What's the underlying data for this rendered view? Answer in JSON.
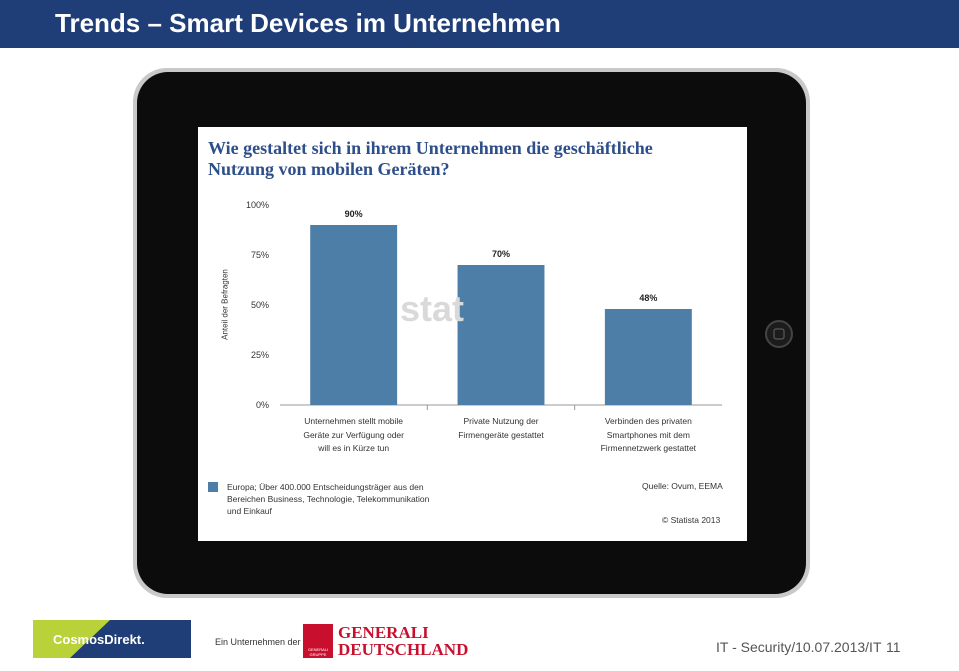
{
  "header": {
    "title": "Trends – Smart Devices im Unternehmen"
  },
  "chart_data": {
    "type": "bar",
    "title": "Wie gestaltet sich in ihrem Unternehmen die geschäftliche Nutzung von mobilen Geräten?",
    "y_label": "Anteil der Befragten",
    "categories": [
      "Unternehmen stellt mobile Geräte zur Verfügung oder will es in Kürze tun",
      "Private Nutzung der Firmengeräte gestattet",
      "Verbinden des privaten Smartphones mit dem Firmennetzwerk gestattet"
    ],
    "values": [
      90,
      70,
      48
    ],
    "value_labels": [
      "90%",
      "70%",
      "48%"
    ],
    "color": "#4d7ea8",
    "ylim": [
      0,
      100
    ],
    "yticks": [
      {
        "value": 0,
        "label": "0%"
      },
      {
        "value": 25,
        "label": "25%"
      },
      {
        "value": 50,
        "label": "50%"
      },
      {
        "value": 75,
        "label": "75%"
      },
      {
        "value": 100,
        "label": "100%"
      }
    ],
    "watermark": "stat",
    "note": "Europa; Über 400.000 Entscheidungsträger aus den Bereichen Business, Technologie, Telekommunikation und Einkauf",
    "source": "Quelle: Ovum, EEMA",
    "copyright": "© Statista 2013"
  },
  "footer": {
    "logo_cosmos": "CosmosDirekt.",
    "company_of": "Ein Unternehmen der",
    "logo_generali": "GENERALI DEUTSCHLAND",
    "logo_generali_small": "GENERALI GRUPPE",
    "slide_info": "IT - Security/10.07.2013/IT",
    "page": "11"
  }
}
